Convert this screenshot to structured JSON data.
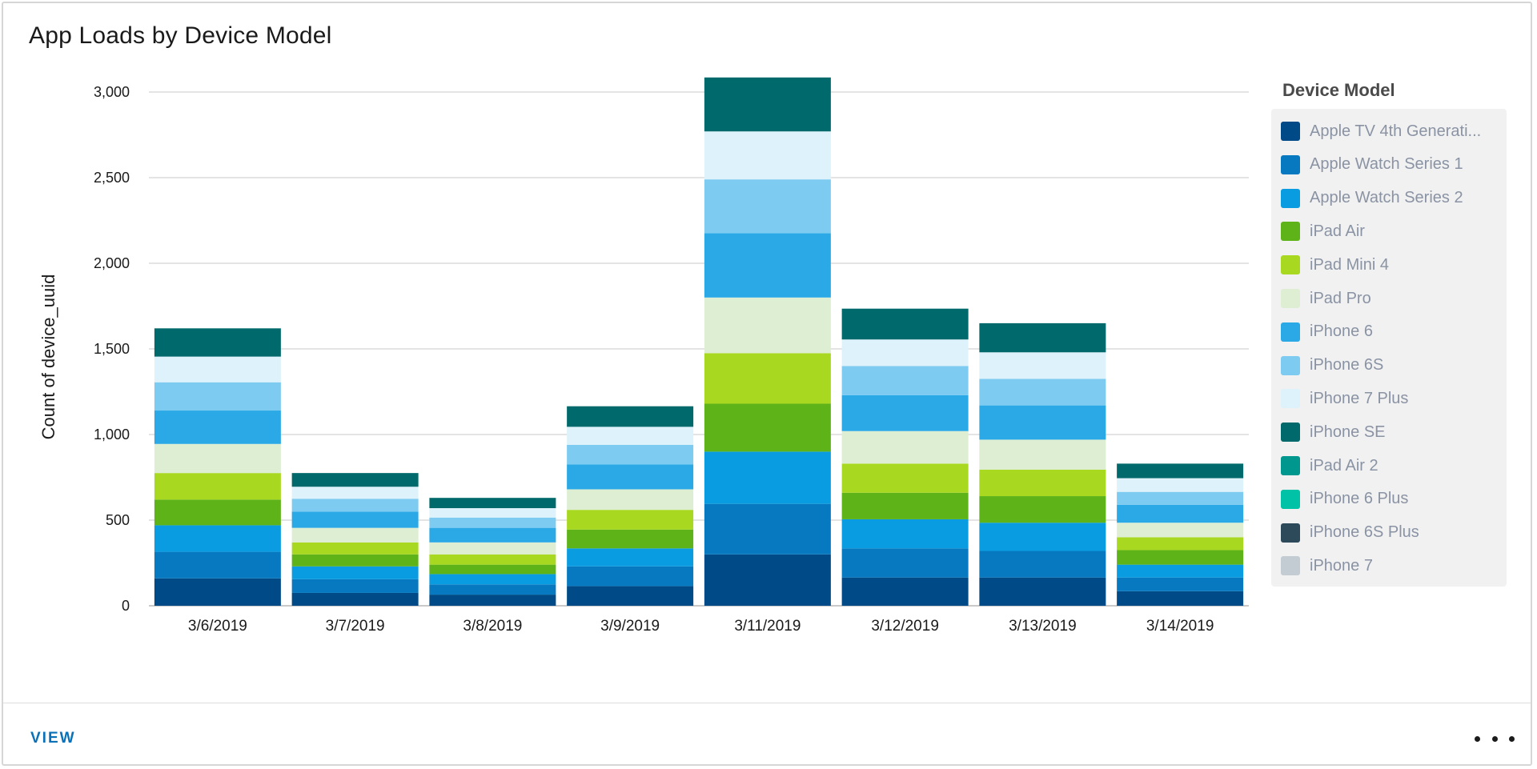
{
  "card": {
    "title": "App Loads by Device Model",
    "view_label": "VIEW",
    "more_icon": "more-horizontal-icon"
  },
  "legend": {
    "title": "Device Model",
    "items": [
      {
        "label": "Apple TV 4th Generati...",
        "color": "#004b87"
      },
      {
        "label": "Apple Watch Series 1",
        "color": "#0779c0"
      },
      {
        "label": "Apple Watch Series 2",
        "color": "#0a9ce0"
      },
      {
        "label": "iPad Air",
        "color": "#5db317"
      },
      {
        "label": "iPad Mini 4",
        "color": "#a8d820"
      },
      {
        "label": "iPad Pro",
        "color": "#ddeed2"
      },
      {
        "label": "iPhone 6",
        "color": "#2aa9e6"
      },
      {
        "label": "iPhone 6S",
        "color": "#7dcbf1"
      },
      {
        "label": "iPhone 7 Plus",
        "color": "#ddf2fa"
      },
      {
        "label": "iPhone SE",
        "color": "#00696b"
      },
      {
        "label": "iPad Air 2",
        "color": "#00978f"
      },
      {
        "label": "iPhone 6 Plus",
        "color": "#00c2a6"
      },
      {
        "label": "iPhone 6S Plus",
        "color": "#2d4a5b"
      },
      {
        "label": "iPhone 7",
        "color": "#c2ccd2"
      }
    ]
  },
  "chart_data": {
    "type": "bar",
    "stacked": true,
    "title": "App Loads by Device Model",
    "xlabel": "",
    "ylabel": "Count of device_uuid",
    "ylim": [
      0,
      3000
    ],
    "yticks": [
      0,
      500,
      1000,
      1500,
      2000,
      2500,
      3000
    ],
    "ytick_labels": [
      "0",
      "500",
      "1,000",
      "1,500",
      "2,000",
      "2,500",
      "3,000"
    ],
    "grid": true,
    "legend_position": "right",
    "categories": [
      "3/6/2019",
      "3/7/2019",
      "3/8/2019",
      "3/9/2019",
      "3/11/2019",
      "3/12/2019",
      "3/13/2019",
      "3/14/2019"
    ],
    "series": [
      {
        "name": "Apple TV 4th Generati...",
        "values": [
          160,
          75,
          65,
          115,
          300,
          165,
          165,
          85
        ]
      },
      {
        "name": "Apple Watch Series 1",
        "values": [
          155,
          80,
          60,
          115,
          295,
          170,
          155,
          80
        ]
      },
      {
        "name": "Apple Watch Series 2",
        "values": [
          155,
          75,
          60,
          105,
          305,
          170,
          165,
          75
        ]
      },
      {
        "name": "iPad Air",
        "values": [
          150,
          70,
          55,
          110,
          280,
          155,
          155,
          85
        ]
      },
      {
        "name": "iPad Mini 4",
        "values": [
          155,
          70,
          60,
          115,
          295,
          170,
          155,
          75
        ]
      },
      {
        "name": "iPad Pro",
        "values": [
          170,
          85,
          70,
          120,
          325,
          190,
          175,
          85
        ]
      },
      {
        "name": "iPhone 6",
        "values": [
          195,
          95,
          85,
          145,
          375,
          210,
          200,
          105
        ]
      },
      {
        "name": "iPhone 6S",
        "values": [
          165,
          75,
          60,
          115,
          315,
          170,
          155,
          75
        ]
      },
      {
        "name": "iPhone 7 Plus",
        "values": [
          150,
          70,
          55,
          105,
          280,
          155,
          155,
          80
        ]
      },
      {
        "name": "iPhone SE",
        "values": [
          165,
          80,
          60,
          120,
          315,
          180,
          170,
          85
        ]
      },
      {
        "name": "iPad Air 2",
        "values": [
          0,
          0,
          0,
          0,
          0,
          0,
          0,
          0
        ]
      },
      {
        "name": "iPhone 6 Plus",
        "values": [
          0,
          0,
          0,
          0,
          0,
          0,
          0,
          0
        ]
      },
      {
        "name": "iPhone 6S Plus",
        "values": [
          0,
          0,
          0,
          0,
          0,
          0,
          0,
          0
        ]
      },
      {
        "name": "iPhone 7",
        "values": [
          0,
          0,
          0,
          0,
          0,
          0,
          0,
          0
        ]
      }
    ]
  }
}
